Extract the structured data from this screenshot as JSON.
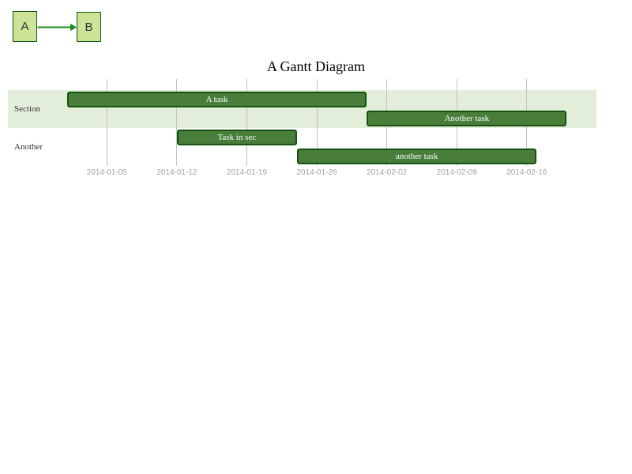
{
  "colors": {
    "node_fill": "#cde498",
    "node_border": "#13540c",
    "node_text": "#333333",
    "arrow": "#1a8c1a",
    "task_fill": "#487e3a",
    "task_border": "#13540c",
    "task_text": "#ffffff",
    "section_band": "#e3eeda",
    "grid_line": "#c0c0c0",
    "tick_text": "#a3a3a3",
    "label_text": "#333333"
  },
  "flowchart": {
    "nodes": [
      {
        "id": "A",
        "label": "A"
      },
      {
        "id": "B",
        "label": "B"
      }
    ],
    "edges": [
      {
        "from": "A",
        "to": "B"
      }
    ]
  },
  "gantt": {
    "title": "A Gantt Diagram"
  },
  "chart_data": {
    "type": "gantt",
    "title": "A Gantt Diagram",
    "axis_dates": [
      "2014-01-05",
      "2014-01-12",
      "2014-01-19",
      "2014-01-26",
      "2014-02-02",
      "2014-02-09",
      "2014-02-16"
    ],
    "sections": [
      {
        "name": "Section",
        "banded": true,
        "tasks": [
          {
            "label": "A task",
            "start": "2014-01-01",
            "end": "2014-01-31"
          },
          {
            "label": "Another task",
            "start": "2014-01-31",
            "end": "2014-02-20"
          }
        ]
      },
      {
        "name": "Another",
        "banded": false,
        "tasks": [
          {
            "label": "Task in sec",
            "start": "2014-01-12",
            "end": "2014-01-24"
          },
          {
            "label": "another task",
            "start": "2014-01-24",
            "end": "2014-02-17"
          }
        ]
      }
    ]
  }
}
